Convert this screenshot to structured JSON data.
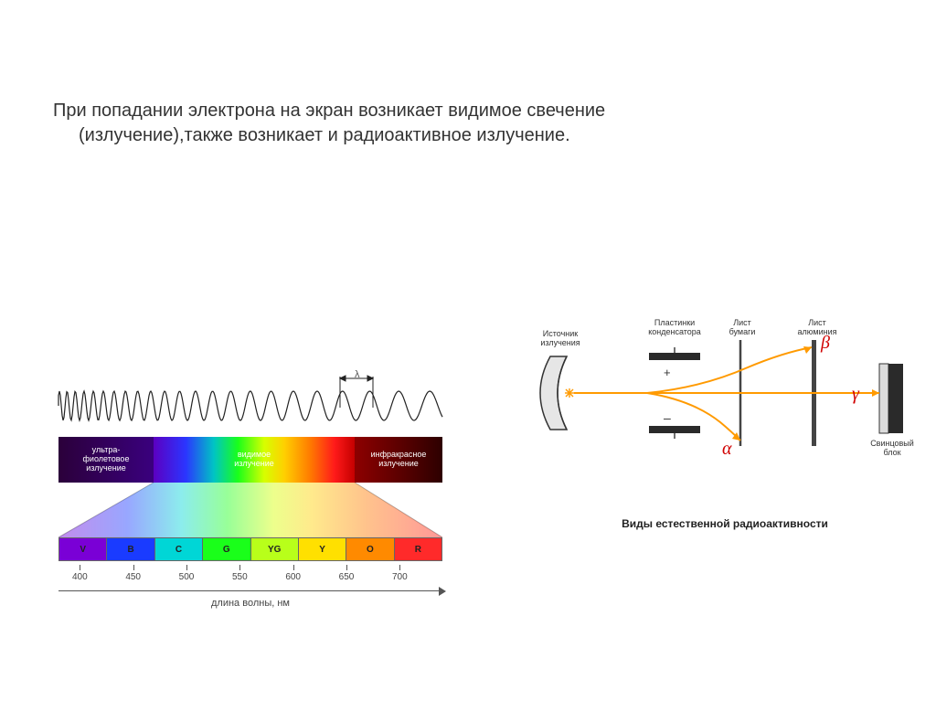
{
  "text": {
    "line1": "При попадании электрона на экран возникает видимое свечение",
    "line2": "(излучение),также возникает и радиоактивное излучение."
  },
  "spectrum": {
    "lambda": "λ",
    "segments": {
      "uv": {
        "label": "ультра-\nфиолетовое\nизлучение",
        "color_from": "#2b003a",
        "color_to": "#3a007e"
      },
      "vis": {
        "label": "видимое\nизлучение"
      },
      "ir": {
        "label": "инфракрасное\nизлучение",
        "color_from": "#8d0000",
        "color_to": "#2d0000"
      }
    },
    "color_cells": [
      {
        "code": "V",
        "color": "#7a00d6"
      },
      {
        "code": "B",
        "color": "#1a3bff"
      },
      {
        "code": "C",
        "color": "#00d6d6"
      },
      {
        "code": "G",
        "color": "#1aff1a"
      },
      {
        "code": "YG",
        "color": "#b8ff1a"
      },
      {
        "code": "Y",
        "color": "#ffe000"
      },
      {
        "code": "O",
        "color": "#ff8a00"
      },
      {
        "code": "R",
        "color": "#ff2a2a"
      }
    ],
    "axis_ticks": [
      400,
      450,
      500,
      550,
      600,
      650,
      700
    ],
    "axis_range": [
      380,
      740
    ],
    "axis_title": "длина волны, нм"
  },
  "radio": {
    "labels": {
      "source": "Источник\nизлучения",
      "capacitor": "Пластинки\nконденсатора",
      "paper": "Лист\nбумаги",
      "aluminum": "Лист\nалюминия",
      "lead": "Свинцовый\nблок"
    },
    "greek": {
      "alpha": "α",
      "beta": "β",
      "gamma": "γ"
    },
    "cap_signs": {
      "plus": "+",
      "minus": "–"
    },
    "caption": "Виды естественной радиоактивности",
    "colors": {
      "ray": "#ff9a00",
      "plate": "#2a2a2a",
      "lead_light": "#dcdcdc",
      "lead_dark": "#2a2a2a",
      "greek": "#d00000"
    }
  }
}
